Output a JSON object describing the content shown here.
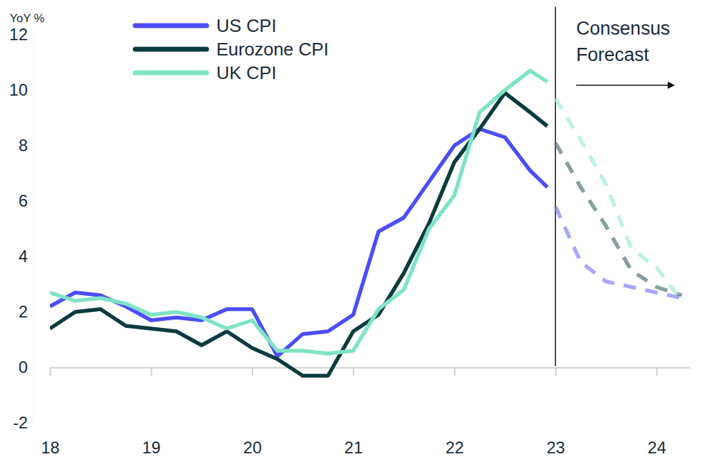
{
  "chart_data": {
    "type": "line",
    "y_label": "YoY %",
    "x": [
      18,
      18.25,
      18.5,
      18.75,
      19,
      19.25,
      19.5,
      19.75,
      20,
      20.25,
      20.5,
      20.75,
      21,
      21.25,
      21.5,
      21.75,
      22,
      22.25,
      22.5,
      22.75,
      22.92,
      23,
      23.25,
      23.5,
      23.75,
      24,
      24.25
    ],
    "series": [
      {
        "name": "US CPI",
        "color": "#4b4ef5",
        "values": [
          2.2,
          2.7,
          2.6,
          2.2,
          1.7,
          1.8,
          1.7,
          2.1,
          2.1,
          0.4,
          1.2,
          1.3,
          1.9,
          4.9,
          5.4,
          6.7,
          8.0,
          8.6,
          8.3,
          7.1,
          6.5,
          5.8,
          3.8,
          3.1,
          2.9,
          2.7,
          2.5
        ]
      },
      {
        "name": "Eurozone CPI",
        "color": "#0b3b3f",
        "values": [
          1.4,
          2.0,
          2.1,
          1.5,
          1.4,
          1.3,
          0.8,
          1.3,
          0.7,
          0.3,
          -0.3,
          -0.3,
          1.3,
          1.9,
          3.4,
          5.2,
          7.4,
          8.6,
          9.9,
          9.2,
          8.7,
          8.1,
          6.5,
          5.1,
          3.5,
          2.9,
          2.6
        ]
      },
      {
        "name": "UK CPI",
        "color": "#7fe3c6",
        "values": [
          2.7,
          2.4,
          2.5,
          2.3,
          1.9,
          2.0,
          1.8,
          1.4,
          1.7,
          0.6,
          0.6,
          0.5,
          0.6,
          2.1,
          2.8,
          5.0,
          6.2,
          9.2,
          10.0,
          10.7,
          10.3,
          9.7,
          8.2,
          6.6,
          4.3,
          3.6,
          2.4
        ]
      }
    ],
    "xlim": [
      18,
      24.33
    ],
    "xticks": [
      18,
      19,
      20,
      21,
      22,
      23,
      24
    ],
    "ylim": [
      -2,
      12
    ],
    "yticks": [
      -2,
      0,
      2,
      4,
      6,
      8,
      10,
      12
    ],
    "legend": "upper left",
    "annotations": [
      {
        "x": 23,
        "text": [
          "Consensus",
          "Forecast"
        ]
      }
    ]
  }
}
